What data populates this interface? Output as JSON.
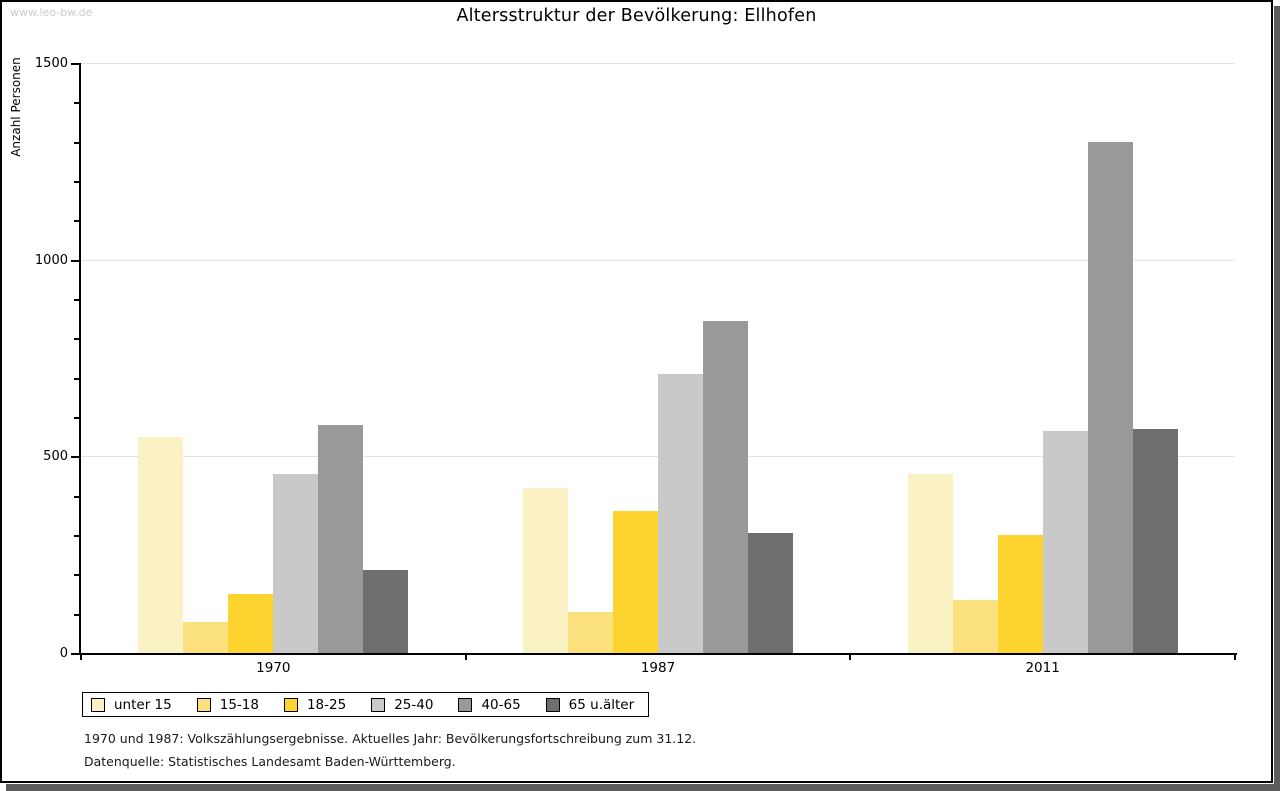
{
  "watermark": "www.leo-bw.de",
  "chart_data": {
    "type": "bar",
    "title": "Altersstruktur der Bevölkerung: Ellhofen",
    "ylabel": "Anzahl Personen",
    "categories": [
      "1970",
      "1987",
      "2011"
    ],
    "series": [
      {
        "name": "unter 15",
        "color": "#FBF2C4",
        "values": [
          550,
          420,
          455
        ]
      },
      {
        "name": "15-18",
        "color": "#FBE17E",
        "values": [
          80,
          105,
          135
        ]
      },
      {
        "name": "18-25",
        "color": "#FCD32F",
        "values": [
          150,
          360,
          300
        ]
      },
      {
        "name": "25-40",
        "color": "#C9C9C9",
        "values": [
          455,
          710,
          565
        ]
      },
      {
        "name": "40-65",
        "color": "#999999",
        "values": [
          580,
          845,
          1300
        ]
      },
      {
        "name": "65 u.älter",
        "color": "#6E6E6E",
        "values": [
          210,
          305,
          570
        ]
      }
    ],
    "ylim": [
      0,
      1500
    ],
    "ytick_major": 500,
    "ytick_minor": 100,
    "grid": true,
    "legend_position": "bottom-left"
  },
  "footnotes": [
    "1970 und 1987: Volkszählungsergebnisse. Aktuelles Jahr: Bevölkerungsfortschreibung zum 31.12.",
    "Datenquelle: Statistisches Landesamt Baden-Württemberg."
  ]
}
